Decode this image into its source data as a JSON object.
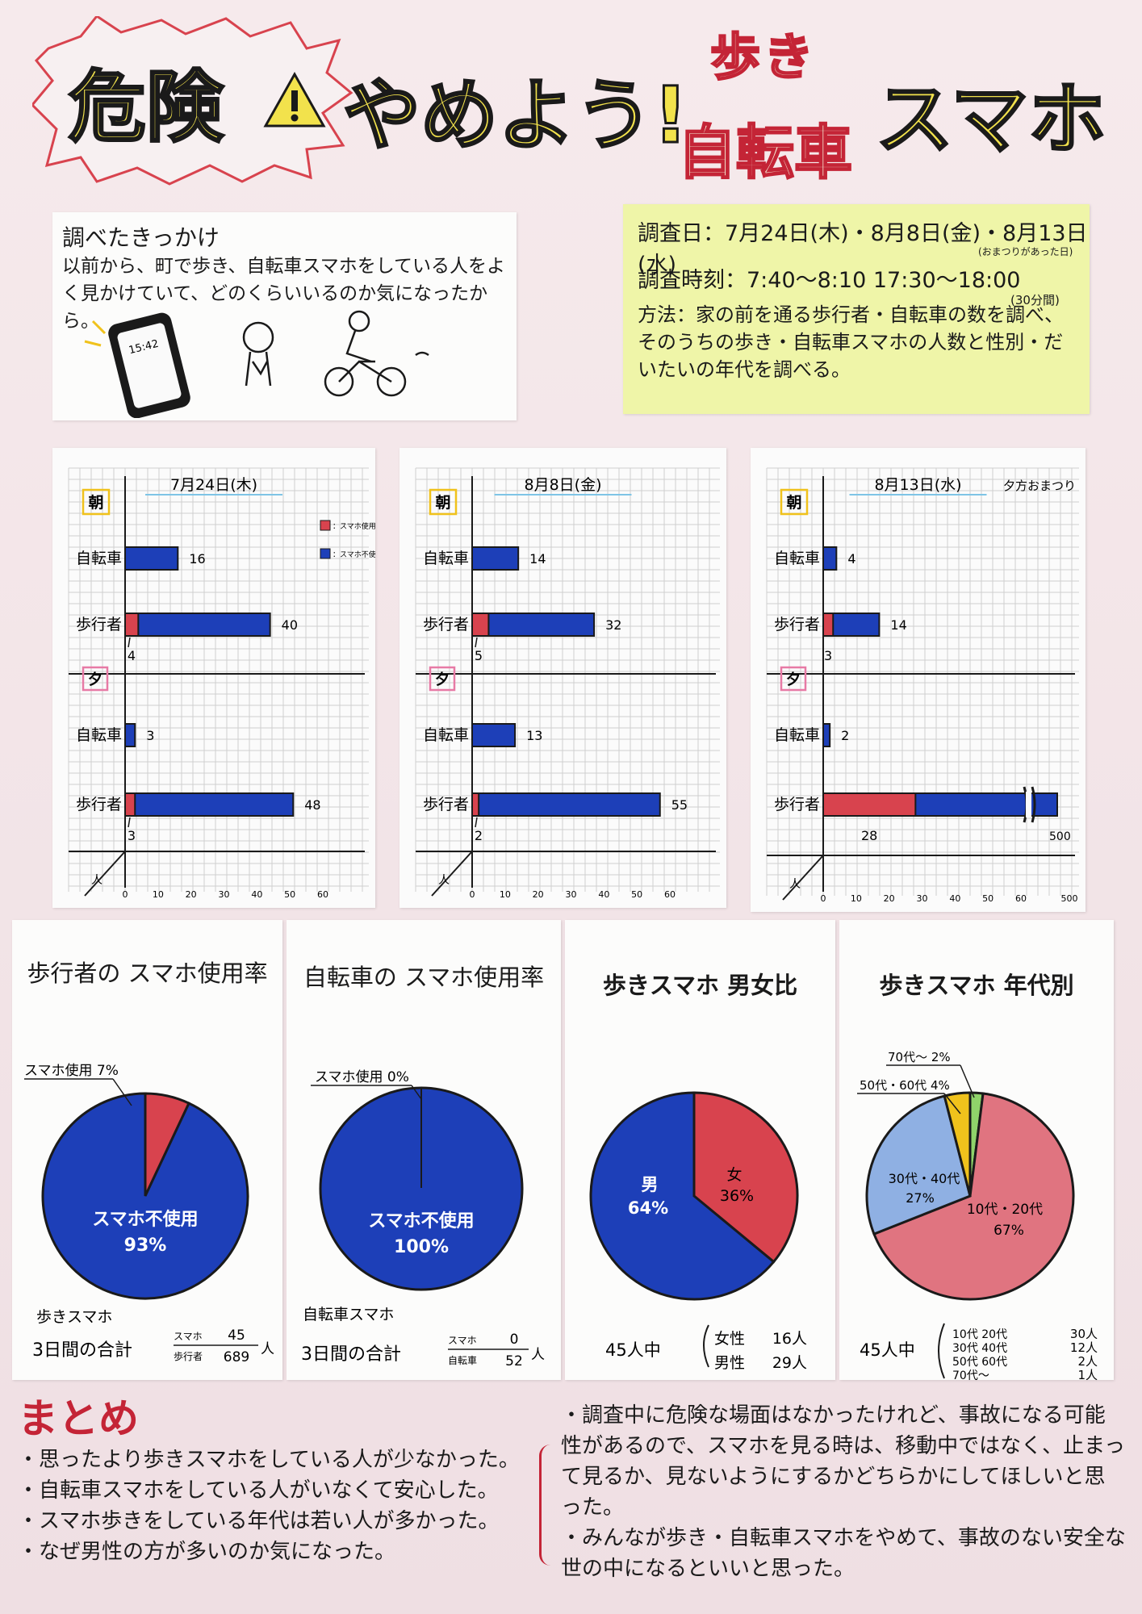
{
  "title": {
    "kiken": "危険",
    "yameyou": "やめよう!",
    "aruki": "歩き",
    "jitensha": "自転車",
    "sumaho": "スマホ"
  },
  "reason": {
    "heading": "調べたきっかけ",
    "text": "以前から、町で歩き、自転車スマホをしている人をよく見かけていて、どのくらいいるのか気になったから。",
    "phone_time": "15:42"
  },
  "method": {
    "dates": "調査日：7月24日(木)・8月8日(金)・8月13日(水)",
    "dates_note": "(おまつりがあった日)",
    "time": "調査時刻：7:40～8:10 17:30～18:00",
    "time_note": "(30分間)",
    "method_text": "方法：家の前を通る歩行者・自転車の数を調べ、そのうちの歩き・自転車スマホの人数と性別・だいたいの年代を調べる。"
  },
  "colors": {
    "red": "#d8434e",
    "blue": "#1d3fb8",
    "yellow": "#f2e24c",
    "pink_red": "#e07480",
    "light_blue": "#8fb0e3",
    "green": "#8fd36a",
    "gold": "#f0c21c",
    "method_bg": "#eff5a8"
  },
  "chart_data": [
    {
      "type": "bar",
      "title": "7月24日(木)",
      "legend": [
        "：スマホ使用",
        "：スマホ不使用"
      ],
      "morning_label": "朝",
      "evening_label": "夕",
      "categories": [
        "自転車",
        "歩行者",
        "自転車",
        "歩行者"
      ],
      "series": [
        {
          "name": "スマホ使用",
          "values": [
            0,
            4,
            0,
            3
          ]
        },
        {
          "name": "スマホ不使用",
          "values": [
            16,
            40,
            3,
            48
          ]
        }
      ],
      "labels": [
        "16",
        "40",
        "3",
        "48"
      ],
      "use_labels": [
        "",
        "4",
        "",
        "3"
      ],
      "x_ticks": [
        0,
        10,
        20,
        30,
        40,
        50,
        60
      ],
      "xlim": [
        0,
        60
      ],
      "unit": "人"
    },
    {
      "type": "bar",
      "title": "8月8日(金)",
      "morning_label": "朝",
      "evening_label": "夕",
      "categories": [
        "自転車",
        "歩行者",
        "自転車",
        "歩行者"
      ],
      "series": [
        {
          "name": "スマホ使用",
          "values": [
            0,
            5,
            0,
            2
          ]
        },
        {
          "name": "スマホ不使用",
          "values": [
            14,
            32,
            13,
            55
          ]
        }
      ],
      "labels": [
        "14",
        "32",
        "13",
        "55"
      ],
      "use_labels": [
        "",
        "5",
        "",
        "2"
      ],
      "x_ticks": [
        0,
        10,
        20,
        30,
        40,
        50,
        60
      ],
      "xlim": [
        0,
        60
      ],
      "unit": "人"
    },
    {
      "type": "bar",
      "title": "8月13日(水)",
      "note": "夕方おまつり",
      "morning_label": "朝",
      "evening_label": "夕",
      "categories": [
        "自転車",
        "歩行者",
        "自転車",
        "歩行者"
      ],
      "series": [
        {
          "name": "スマホ使用",
          "values": [
            0,
            3,
            0,
            28
          ]
        },
        {
          "name": "スマホ不使用",
          "values": [
            4,
            14,
            2,
            500
          ]
        }
      ],
      "labels": [
        "4",
        "14",
        "2",
        "500"
      ],
      "use_labels": [
        "",
        "3",
        "",
        "28"
      ],
      "x_ticks": [
        "0",
        "10",
        "20",
        "30",
        "40",
        "50",
        "60",
        "500"
      ],
      "xlim": [
        0,
        70
      ],
      "axis_break": true,
      "unit": "人"
    },
    {
      "type": "pie",
      "title": "歩行者の スマホ使用率",
      "slices": [
        {
          "label": "スマホ使用",
          "value": 7,
          "pct": "7%"
        },
        {
          "label": "スマホ不使用",
          "value": 93,
          "pct": "93%"
        }
      ],
      "outside_label": "スマホ使用 7%",
      "center_label": "スマホ不使用",
      "center_pct": "93%",
      "footer_title": "歩きスマホ",
      "footer_total": "3日間の合計",
      "fraction_num_label": "スマホ",
      "fraction_den_label": "歩行者",
      "fraction_num": "45",
      "fraction_den": "689",
      "fraction_unit": "人"
    },
    {
      "type": "pie",
      "title": "自転車の スマホ使用率",
      "slices": [
        {
          "label": "スマホ使用",
          "value": 0,
          "pct": "0%"
        },
        {
          "label": "スマホ不使用",
          "value": 100,
          "pct": "100%"
        }
      ],
      "outside_label": "スマホ使用 0%",
      "center_label": "スマホ不使用",
      "center_pct": "100%",
      "footer_title": "自転車スマホ",
      "footer_total": "3日間の合計",
      "fraction_num_label": "スマホ",
      "fraction_den_label": "自転車",
      "fraction_num": "0",
      "fraction_den": "52",
      "fraction_unit": "人"
    },
    {
      "type": "pie",
      "title": "歩きスマホ 男女比",
      "slices": [
        {
          "label": "女",
          "value": 36,
          "pct": "36%"
        },
        {
          "label": "男",
          "value": 64,
          "pct": "64%"
        }
      ],
      "footer_total": "45人中",
      "breakdown": [
        {
          "label": "女性",
          "value": "16人"
        },
        {
          "label": "男性",
          "value": "29人"
        }
      ]
    },
    {
      "type": "pie",
      "title": "歩きスマホ 年代別",
      "slices": [
        {
          "label": "70代～",
          "value": 2,
          "pct": "2%"
        },
        {
          "label": "10代・20代",
          "value": 67,
          "pct": "67%"
        },
        {
          "label": "30代・40代",
          "value": 27,
          "pct": "27%"
        },
        {
          "label": "50代・60代",
          "value": 4,
          "pct": "4%"
        }
      ],
      "outside_labels": [
        "70代～ 2%",
        "50代・60代 4%"
      ],
      "footer_total": "45人中",
      "breakdown": [
        {
          "label": "10代 20代",
          "value": "30人"
        },
        {
          "label": "30代 40代",
          "value": "12人"
        },
        {
          "label": "50代 60代",
          "value": "2人"
        },
        {
          "label": "70代～",
          "value": "1人"
        }
      ]
    }
  ],
  "summary": {
    "heading": "まとめ",
    "left": [
      "・思ったより歩きスマホをしている人が少なかった。",
      "・自転車スマホをしている人がいなくて安心した。",
      "・スマホ歩きをしている年代は若い人が多かった。",
      "・なぜ男性の方が多いのか気になった。"
    ],
    "right": [
      "・調査中に危険な場面はなかったけれど、事故になる可能性があるので、スマホを見る時は、移動中ではなく、止まって見るか、見ないようにするかどちらかにしてほしいと思った。",
      "・みんなが歩き・自転車スマホをやめて、事故のない安全な世の中になるといいと思った。"
    ]
  }
}
